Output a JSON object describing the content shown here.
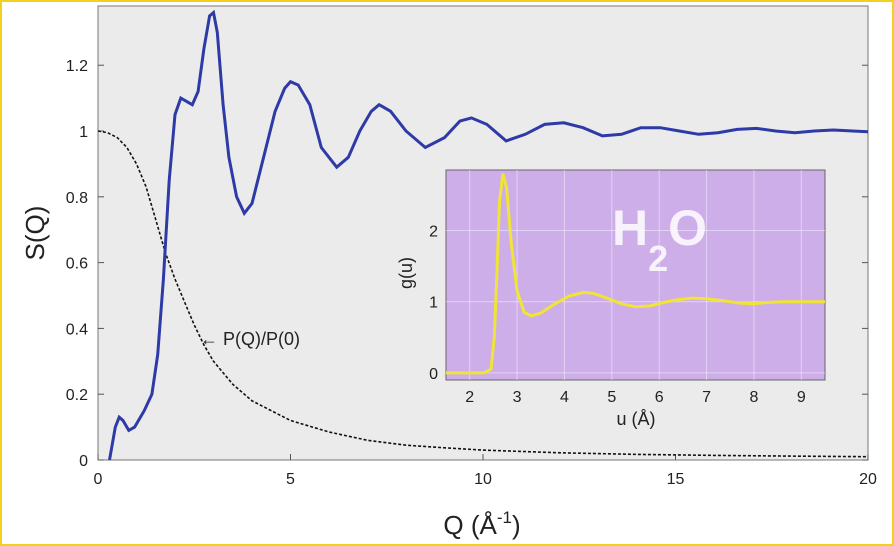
{
  "chart_data": [
    {
      "type": "line",
      "xlabel": "Q (Å",
      "xlabel_sup": "-1",
      "xlabel_close": ")",
      "ylabel": "S(Q)",
      "xlim": [
        0,
        20
      ],
      "ylim": [
        0,
        1.38
      ],
      "xticks": [
        "0",
        "5",
        "10",
        "15",
        "20"
      ],
      "yticks": [
        "0",
        "0.2",
        "0.4",
        "0.6",
        "0.8",
        "1",
        "1.2"
      ],
      "grid": false,
      "background": "#ebebeb",
      "annotation": "← P(Q)/P(0)",
      "series": [
        {
          "color": "#2e3aa6",
          "style": "solid",
          "points": [
            [
              0.3,
              0
            ],
            [
              0.45,
              0.1
            ],
            [
              0.55,
              0.13
            ],
            [
              0.65,
              0.12
            ],
            [
              0.8,
              0.09
            ],
            [
              0.95,
              0.1
            ],
            [
              1.2,
              0.15
            ],
            [
              1.4,
              0.2
            ],
            [
              1.55,
              0.32
            ],
            [
              1.7,
              0.55
            ],
            [
              1.85,
              0.85
            ],
            [
              2.0,
              1.05
            ],
            [
              2.15,
              1.1
            ],
            [
              2.3,
              1.09
            ],
            [
              2.45,
              1.08
            ],
            [
              2.6,
              1.12
            ],
            [
              2.75,
              1.25
            ],
            [
              2.9,
              1.35
            ],
            [
              3.0,
              1.36
            ],
            [
              3.1,
              1.3
            ],
            [
              3.25,
              1.08
            ],
            [
              3.4,
              0.92
            ],
            [
              3.6,
              0.8
            ],
            [
              3.8,
              0.75
            ],
            [
              4.0,
              0.78
            ],
            [
              4.3,
              0.92
            ],
            [
              4.6,
              1.06
            ],
            [
              4.85,
              1.13
            ],
            [
              5.0,
              1.15
            ],
            [
              5.2,
              1.14
            ],
            [
              5.5,
              1.08
            ],
            [
              5.8,
              0.95
            ],
            [
              6.2,
              0.89
            ],
            [
              6.5,
              0.92
            ],
            [
              6.8,
              1.0
            ],
            [
              7.1,
              1.06
            ],
            [
              7.3,
              1.08
            ],
            [
              7.6,
              1.06
            ],
            [
              8.0,
              1.0
            ],
            [
              8.5,
              0.95
            ],
            [
              9.0,
              0.98
            ],
            [
              9.4,
              1.03
            ],
            [
              9.7,
              1.04
            ],
            [
              10.1,
              1.02
            ],
            [
              10.6,
              0.97
            ],
            [
              11.1,
              0.99
            ],
            [
              11.6,
              1.02
            ],
            [
              12.1,
              1.025
            ],
            [
              12.6,
              1.01
            ],
            [
              13.1,
              0.985
            ],
            [
              13.6,
              0.99
            ],
            [
              14.1,
              1.01
            ],
            [
              14.6,
              1.01
            ],
            [
              15.1,
              1.0
            ],
            [
              15.6,
              0.99
            ],
            [
              16.1,
              0.995
            ],
            [
              16.6,
              1.005
            ],
            [
              17.1,
              1.008
            ],
            [
              17.6,
              1.0
            ],
            [
              18.1,
              0.995
            ],
            [
              18.6,
              1.0
            ],
            [
              19.1,
              1.003
            ],
            [
              19.6,
              1.0
            ],
            [
              20.0,
              0.998
            ]
          ]
        },
        {
          "color": "#111111",
          "style": "dashed",
          "points": [
            [
              0,
              1.0
            ],
            [
              0.25,
              0.995
            ],
            [
              0.5,
              0.98
            ],
            [
              0.75,
              0.95
            ],
            [
              1.0,
              0.9
            ],
            [
              1.25,
              0.83
            ],
            [
              1.5,
              0.73
            ],
            [
              1.75,
              0.63
            ],
            [
              2.0,
              0.55
            ],
            [
              2.25,
              0.48
            ],
            [
              2.5,
              0.41
            ],
            [
              2.75,
              0.35
            ],
            [
              3.0,
              0.3
            ],
            [
              3.5,
              0.23
            ],
            [
              4.0,
              0.18
            ],
            [
              4.5,
              0.15
            ],
            [
              5.0,
              0.12
            ],
            [
              6.0,
              0.085
            ],
            [
              7.0,
              0.06
            ],
            [
              8.0,
              0.045
            ],
            [
              9.0,
              0.037
            ],
            [
              10.0,
              0.03
            ],
            [
              12.0,
              0.022
            ],
            [
              14.0,
              0.017
            ],
            [
              16.0,
              0.014
            ],
            [
              18.0,
              0.012
            ],
            [
              20.0,
              0.01
            ]
          ]
        }
      ]
    },
    {
      "type": "line",
      "xlabel": "u (Å)",
      "ylabel": "g(u)",
      "xlim": [
        1.5,
        9.5
      ],
      "ylim": [
        -0.1,
        2.85
      ],
      "xticks": [
        "2",
        "3",
        "4",
        "5",
        "6",
        "7",
        "8",
        "9"
      ],
      "yticks": [
        "0",
        "1",
        "2"
      ],
      "grid": true,
      "background": "#cdaee9",
      "label_main": "H",
      "label_sub": "2",
      "label_end": "O",
      "series": [
        {
          "color": "#f0e436",
          "style": "solid",
          "points": [
            [
              1.5,
              0
            ],
            [
              2.3,
              0
            ],
            [
              2.45,
              0.05
            ],
            [
              2.52,
              0.5
            ],
            [
              2.58,
              1.5
            ],
            [
              2.63,
              2.4
            ],
            [
              2.7,
              2.8
            ],
            [
              2.78,
              2.6
            ],
            [
              2.88,
              1.8
            ],
            [
              3.0,
              1.15
            ],
            [
              3.15,
              0.85
            ],
            [
              3.3,
              0.8
            ],
            [
              3.5,
              0.84
            ],
            [
              3.8,
              0.97
            ],
            [
              4.1,
              1.08
            ],
            [
              4.4,
              1.13
            ],
            [
              4.6,
              1.12
            ],
            [
              4.9,
              1.05
            ],
            [
              5.2,
              0.97
            ],
            [
              5.5,
              0.93
            ],
            [
              5.8,
              0.94
            ],
            [
              6.1,
              0.99
            ],
            [
              6.4,
              1.03
            ],
            [
              6.7,
              1.05
            ],
            [
              7.0,
              1.04
            ],
            [
              7.4,
              1.01
            ],
            [
              7.7,
              0.98
            ],
            [
              8.0,
              0.97
            ],
            [
              8.3,
              0.99
            ],
            [
              8.6,
              1.0
            ],
            [
              9.0,
              1.0
            ],
            [
              9.5,
              1.0
            ]
          ]
        }
      ]
    }
  ]
}
